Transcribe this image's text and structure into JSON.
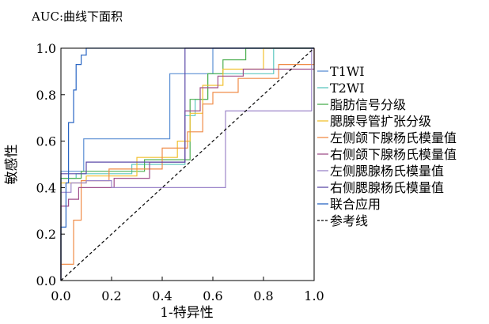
{
  "chart_data": {
    "type": "line",
    "note": "AUC:曲线下面积",
    "xlabel": "1-特异性",
    "ylabel": "敏感性",
    "xlim": [
      0,
      1
    ],
    "ylim": [
      0,
      1
    ],
    "xticks": [
      "0.0",
      "0.2",
      "0.4",
      "0.6",
      "0.8",
      "1.0"
    ],
    "yticks": [
      "0.0",
      "0.2",
      "0.4",
      "0.6",
      "0.8",
      "1.0"
    ],
    "grid": false,
    "legend_position": "right",
    "series": [
      {
        "name": "T1WI",
        "color": "#5b8fd4",
        "dash": false,
        "points": [
          [
            0,
            0
          ],
          [
            0,
            0.47
          ],
          [
            0.09,
            0.47
          ],
          [
            0.09,
            0.61
          ],
          [
            0.43,
            0.61
          ],
          [
            0.43,
            0.89
          ],
          [
            0.6,
            0.89
          ],
          [
            0.6,
            1.0
          ],
          [
            1,
            1
          ]
        ]
      },
      {
        "name": "T2WI",
        "color": "#5cc7bf",
        "dash": false,
        "points": [
          [
            0,
            0
          ],
          [
            0,
            0.44
          ],
          [
            0.06,
            0.44
          ],
          [
            0.06,
            0.46
          ],
          [
            0.28,
            0.46
          ],
          [
            0.28,
            0.5
          ],
          [
            0.49,
            0.5
          ],
          [
            0.49,
            0.71
          ],
          [
            0.53,
            0.71
          ],
          [
            0.53,
            0.78
          ],
          [
            0.58,
            0.78
          ],
          [
            0.58,
            0.89
          ],
          [
            0.84,
            0.89
          ],
          [
            0.84,
            1.0
          ],
          [
            1,
            1
          ]
        ]
      },
      {
        "name": "脂肪信号分级",
        "color": "#4caf50",
        "dash": false,
        "points": [
          [
            0,
            0
          ],
          [
            0,
            0.44
          ],
          [
            0.08,
            0.44
          ],
          [
            0.08,
            0.47
          ],
          [
            0.33,
            0.47
          ],
          [
            0.33,
            0.52
          ],
          [
            0.51,
            0.52
          ],
          [
            0.51,
            0.78
          ],
          [
            0.58,
            0.78
          ],
          [
            0.58,
            0.89
          ],
          [
            0.64,
            0.89
          ],
          [
            0.64,
            0.95
          ],
          [
            0.73,
            0.95
          ],
          [
            0.73,
            1.0
          ],
          [
            1,
            1
          ]
        ]
      },
      {
        "name": "腮腺导管扩张分级",
        "color": "#f2c130",
        "dash": false,
        "points": [
          [
            0,
            0
          ],
          [
            0,
            0.42
          ],
          [
            0.1,
            0.42
          ],
          [
            0.1,
            0.45
          ],
          [
            0.3,
            0.45
          ],
          [
            0.3,
            0.53
          ],
          [
            0.46,
            0.53
          ],
          [
            0.46,
            0.6
          ],
          [
            0.51,
            0.6
          ],
          [
            0.51,
            0.72
          ],
          [
            0.56,
            0.72
          ],
          [
            0.56,
            0.84
          ],
          [
            0.64,
            0.84
          ],
          [
            0.64,
            0.91
          ],
          [
            0.8,
            0.91
          ],
          [
            0.8,
            1.0
          ],
          [
            1,
            1
          ]
        ]
      },
      {
        "name": "左侧颌下腺杨氏模量值",
        "color": "#f08c48",
        "dash": false,
        "points": [
          [
            0,
            0
          ],
          [
            0,
            0.07
          ],
          [
            0.05,
            0.07
          ],
          [
            0.05,
            0.26
          ],
          [
            0.08,
            0.26
          ],
          [
            0.08,
            0.43
          ],
          [
            0.19,
            0.43
          ],
          [
            0.19,
            0.48
          ],
          [
            0.4,
            0.48
          ],
          [
            0.4,
            0.57
          ],
          [
            0.5,
            0.57
          ],
          [
            0.5,
            0.64
          ],
          [
            0.56,
            0.64
          ],
          [
            0.56,
            0.76
          ],
          [
            0.6,
            0.76
          ],
          [
            0.6,
            0.81
          ],
          [
            0.7,
            0.81
          ],
          [
            0.7,
            0.87
          ],
          [
            0.86,
            0.87
          ],
          [
            0.86,
            0.93
          ],
          [
            1,
            0.93
          ],
          [
            1,
            1.0
          ]
        ]
      },
      {
        "name": "右侧颌下腺杨氏模量值",
        "color": "#a0508c",
        "dash": false,
        "points": [
          [
            0,
            0
          ],
          [
            0,
            0.32
          ],
          [
            0.03,
            0.32
          ],
          [
            0.03,
            0.35
          ],
          [
            0.07,
            0.35
          ],
          [
            0.07,
            0.4
          ],
          [
            0.21,
            0.4
          ],
          [
            0.21,
            0.44
          ],
          [
            0.35,
            0.44
          ],
          [
            0.35,
            0.51
          ],
          [
            0.49,
            0.51
          ],
          [
            0.49,
            0.73
          ],
          [
            0.55,
            0.73
          ],
          [
            0.55,
            0.83
          ],
          [
            0.62,
            0.83
          ],
          [
            0.62,
            0.88
          ],
          [
            0.72,
            0.88
          ],
          [
            0.72,
            0.91
          ],
          [
            1,
            0.91
          ],
          [
            1,
            1.0
          ]
        ]
      },
      {
        "name": "左侧腮腺杨氏模量值",
        "color": "#9c85c9",
        "dash": false,
        "points": [
          [
            0,
            0
          ],
          [
            0,
            0.38
          ],
          [
            0.04,
            0.38
          ],
          [
            0.04,
            0.42
          ],
          [
            0.1,
            0.42
          ],
          [
            0.1,
            0.43
          ],
          [
            0.2,
            0.43
          ],
          [
            0.2,
            0.4
          ],
          [
            0.48,
            0.4
          ],
          [
            0.48,
            0.4
          ],
          [
            0.65,
            0.4
          ],
          [
            0.65,
            0.73
          ],
          [
            0.99,
            0.73
          ],
          [
            0.99,
            1.0
          ],
          [
            1,
            1
          ]
        ]
      },
      {
        "name": "右侧腮腺杨氏模量值",
        "color": "#5c4aa8",
        "dash": false,
        "points": [
          [
            0,
            0
          ],
          [
            0,
            0.46
          ],
          [
            0.1,
            0.46
          ],
          [
            0.1,
            0.51
          ],
          [
            0.49,
            0.51
          ],
          [
            0.49,
            1.0
          ],
          [
            1,
            1
          ]
        ]
      },
      {
        "name": "联合应用",
        "color": "#2a66c4",
        "dash": false,
        "points": [
          [
            0,
            0
          ],
          [
            0,
            0.23
          ],
          [
            0.02,
            0.23
          ],
          [
            0.02,
            0.42
          ],
          [
            0.03,
            0.42
          ],
          [
            0.03,
            0.68
          ],
          [
            0.05,
            0.68
          ],
          [
            0.05,
            0.82
          ],
          [
            0.06,
            0.82
          ],
          [
            0.06,
            0.93
          ],
          [
            0.08,
            0.93
          ],
          [
            0.08,
            0.97
          ],
          [
            0.1,
            0.97
          ],
          [
            0.1,
            1.0
          ],
          [
            1,
            1
          ]
        ]
      },
      {
        "name": "参考线",
        "color": "#000000",
        "dash": true,
        "points": [
          [
            0,
            0
          ],
          [
            1,
            1
          ]
        ]
      }
    ]
  }
}
